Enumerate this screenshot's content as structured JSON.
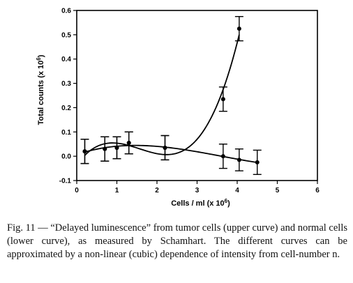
{
  "chart_data": {
    "type": "scatter",
    "xlabel": "Cells / ml (x 10^6)",
    "ylabel": "Total counts (x 10^6)",
    "xlim": [
      0,
      6
    ],
    "ylim": [
      -0.1,
      0.6
    ],
    "xticks": [
      "0",
      "1",
      "2",
      "3",
      "4",
      "5",
      "6"
    ],
    "yticks": [
      "-0.1",
      "0.0",
      "0.1",
      "0.2",
      "0.3",
      "0.4",
      "0.5",
      "0.6"
    ],
    "grid": false,
    "legend": "none",
    "series": [
      {
        "points": [
          {
            "x": 0.2,
            "y": 0.02,
            "err": 0.05
          },
          {
            "x": 0.7,
            "y": 0.03,
            "err": 0.05
          },
          {
            "x": 1.0,
            "y": 0.035,
            "err": 0.045
          },
          {
            "x": 1.3,
            "y": 0.055,
            "err": 0.045
          },
          {
            "x": 2.2,
            "y": 0.035,
            "err": 0.05
          },
          {
            "x": 3.65,
            "y": 0.235,
            "err": 0.05
          },
          {
            "x": 4.05,
            "y": 0.525,
            "err": 0.05
          }
        ],
        "fit": "cubic"
      },
      {
        "points": [
          {
            "x": 0.2,
            "y": 0.02,
            "err": 0.05
          },
          {
            "x": 0.7,
            "y": 0.03,
            "err": 0.05
          },
          {
            "x": 1.0,
            "y": 0.035,
            "err": 0.045
          },
          {
            "x": 1.3,
            "y": 0.055,
            "err": 0.045
          },
          {
            "x": 2.2,
            "y": 0.035,
            "err": 0.05
          },
          {
            "x": 3.65,
            "y": 0.0,
            "err": 0.05
          },
          {
            "x": 4.05,
            "y": -0.015,
            "err": 0.045
          },
          {
            "x": 4.5,
            "y": -0.025,
            "err": 0.05
          }
        ],
        "fit": "cubic"
      }
    ]
  },
  "caption": "Fig. 11 — “Delayed luminescence” from tumor cells (upper curve) and normal cells (lower curve), as measured by Schamhart. The different curves can be approximated by a non-linear (cubic) dependence of intensity from cell-number n."
}
